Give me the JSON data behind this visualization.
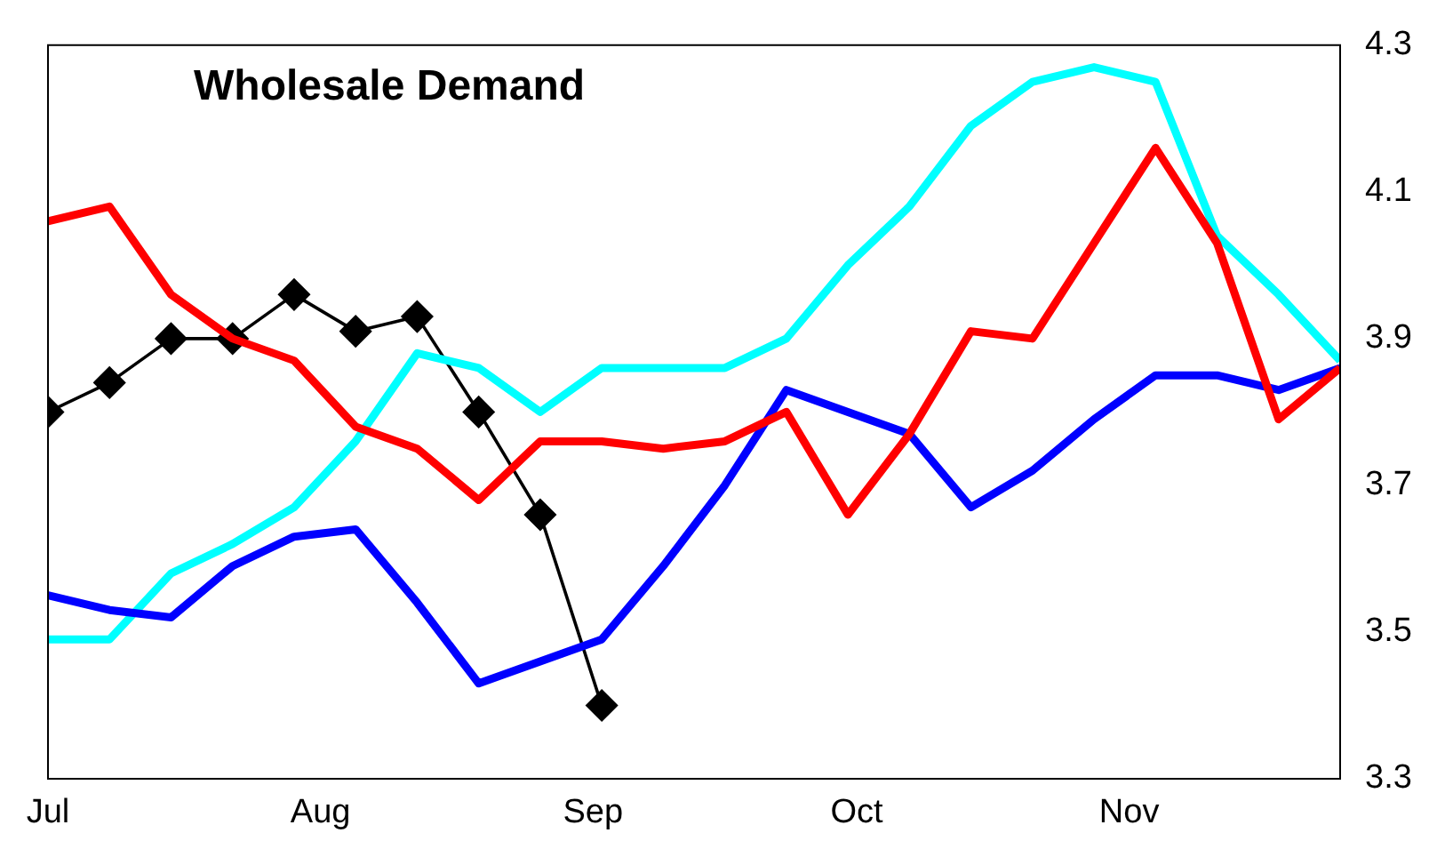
{
  "chart_data": {
    "type": "line",
    "title": "Wholesale Demand",
    "x": [
      "--07-01",
      "--07-08",
      "--07-15",
      "--07-22",
      "--07-29",
      "--08-05",
      "--08-12",
      "--08-19",
      "--08-26",
      "--09-02",
      "--09-09",
      "--09-16",
      "--09-23",
      "--09-30",
      "--10-07",
      "--10-14",
      "--10-21",
      "--10-28",
      "--11-04",
      "--11-11",
      "--11-18",
      "--11-25"
    ],
    "xlim": [
      "--07-01",
      "--11-25"
    ],
    "xticks": [
      {
        "value": "--07-01",
        "label": "Jul"
      },
      {
        "value": "--08-01",
        "label": "Aug"
      },
      {
        "value": "--09-01",
        "label": "Sep"
      },
      {
        "value": "--10-01",
        "label": "Oct"
      },
      {
        "value": "--11-01",
        "label": "Nov"
      }
    ],
    "ylim": [
      3.3,
      4.3
    ],
    "yticks": [
      3.3,
      3.5,
      3.7,
      3.9,
      4.1,
      4.3
    ],
    "grid": false,
    "legend": false,
    "series": [
      {
        "color": "#ff0000",
        "marker": "none",
        "values": [
          4.06,
          4.08,
          3.96,
          3.9,
          3.87,
          3.78,
          3.75,
          3.68,
          3.76,
          3.76,
          3.75,
          3.76,
          3.8,
          3.66,
          3.77,
          3.91,
          3.9,
          4.03,
          4.16,
          4.03,
          3.79,
          3.86
        ]
      },
      {
        "color": "#0000ff",
        "marker": "none",
        "values": [
          3.55,
          3.53,
          3.52,
          3.59,
          3.63,
          3.64,
          3.54,
          3.43,
          3.46,
          3.49,
          3.59,
          3.7,
          3.83,
          3.8,
          3.77,
          3.67,
          3.72,
          3.79,
          3.85,
          3.85,
          3.83,
          3.86
        ]
      },
      {
        "color": "#00ffff",
        "marker": "none",
        "values": [
          3.49,
          3.49,
          3.58,
          3.62,
          3.67,
          3.76,
          3.88,
          3.86,
          3.8,
          3.86,
          3.86,
          3.86,
          3.9,
          4.0,
          4.08,
          4.19,
          4.25,
          4.27,
          4.25,
          4.04,
          3.96,
          3.87
        ]
      },
      {
        "color": "#000000",
        "marker": "diamond",
        "values": [
          3.8,
          3.84,
          3.9,
          3.9,
          3.96,
          3.91,
          3.93,
          3.8,
          3.66,
          3.4,
          null,
          null,
          null,
          null,
          null,
          null,
          null,
          null,
          null,
          null,
          null,
          null
        ]
      }
    ]
  }
}
